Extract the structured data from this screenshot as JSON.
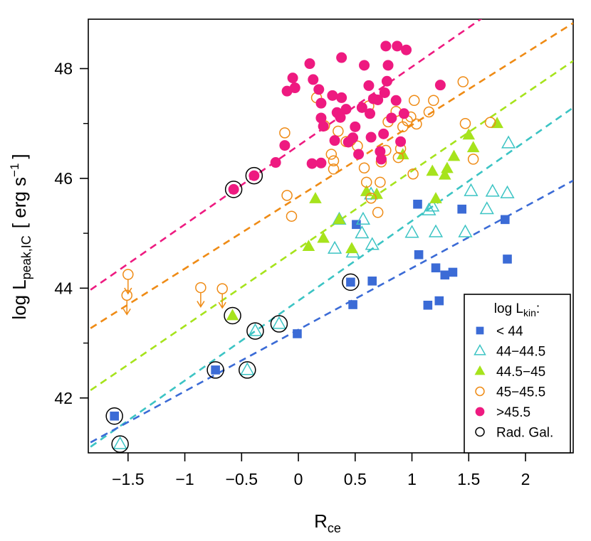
{
  "chart_data": {
    "type": "scatter",
    "xlabel": "R",
    "xlabel_sub": "ce",
    "ylabel_prefix": "log L",
    "ylabel_sub": "peak,IC",
    "ylabel_units": "[ erg s",
    "ylabel_units_sup": "−1",
    "ylabel_units_close": "]",
    "xlim": [
      -1.85,
      2.42
    ],
    "ylim": [
      41.0,
      48.9
    ],
    "x_ticks": [
      -1.5,
      -1,
      -0.5,
      0,
      0.5,
      1,
      1.5,
      2
    ],
    "x_tick_labels": [
      "−1.5",
      "−1",
      "−0.5",
      "0",
      "0.5",
      "1",
      "1.5",
      "2"
    ],
    "y_ticks": [
      42,
      44,
      46,
      48
    ],
    "y_tick_labels": [
      "42",
      "44",
      "46",
      "48"
    ],
    "y_minor_ticks": [
      43,
      45,
      47
    ],
    "grid": false,
    "legend": {
      "title": "log L",
      "title_sub": "kin",
      "title_suffix": ":",
      "position": "bottom-right",
      "entries": [
        {
          "label": "< 44",
          "marker": "square-filled",
          "color": "#3b6bd6"
        },
        {
          "label": "44−44.5",
          "marker": "triangle-open",
          "color": "#3cc4c4"
        },
        {
          "label": "44.5−45",
          "marker": "triangle-filled",
          "color": "#a6e31c"
        },
        {
          "label": "45−45.5",
          "marker": "circle-open",
          "color": "#ef8b15"
        },
        {
          "label": ">45.5",
          "marker": "circle-filled",
          "color": "#ee1a80"
        },
        {
          "label": "Rad. Gal.",
          "marker": "circle-open-large",
          "color": "#000000"
        }
      ]
    },
    "fit_lines": [
      {
        "color": "#ee1a80",
        "x": [
          -1.83,
          2.42
        ],
        "y": [
          43.97,
          50.07
        ]
      },
      {
        "color": "#ef8b15",
        "x": [
          -1.83,
          2.42
        ],
        "y": [
          43.27,
          48.83
        ]
      },
      {
        "color": "#a6e31c",
        "x": [
          -1.83,
          2.42
        ],
        "y": [
          42.14,
          48.14
        ]
      },
      {
        "color": "#3cc4c4",
        "x": [
          -1.83,
          2.42
        ],
        "y": [
          41.11,
          47.29
        ]
      },
      {
        "color": "#3b6bd6",
        "x": [
          -1.83,
          2.42
        ],
        "y": [
          41.19,
          45.96
        ]
      }
    ],
    "series": [
      {
        "name": "< 44",
        "marker": "square-filled",
        "color": "#3b6bd6",
        "points": [
          [
            -1.62,
            41.67
          ],
          [
            -0.73,
            42.51
          ],
          [
            -0.01,
            43.17
          ],
          [
            0.46,
            44.11
          ],
          [
            0.48,
            43.7
          ],
          [
            0.51,
            45.16
          ],
          [
            0.65,
            44.13
          ],
          [
            1.05,
            45.53
          ],
          [
            1.06,
            44.61
          ],
          [
            1.14,
            43.69
          ],
          [
            1.21,
            44.37
          ],
          [
            1.24,
            43.77
          ],
          [
            1.29,
            44.24
          ],
          [
            1.36,
            44.29
          ],
          [
            1.44,
            45.44
          ],
          [
            1.82,
            45.25
          ],
          [
            1.84,
            44.53
          ]
        ]
      },
      {
        "name": "44−44.5",
        "marker": "triangle-open",
        "color": "#3cc4c4",
        "points": [
          [
            -1.57,
            41.16
          ],
          [
            -0.38,
            43.22
          ],
          [
            -0.17,
            43.35
          ],
          [
            -0.45,
            42.51
          ],
          [
            0.32,
            44.72
          ],
          [
            0.36,
            45.25
          ],
          [
            0.48,
            44.65
          ],
          [
            0.56,
            45.0
          ],
          [
            0.57,
            45.25
          ],
          [
            0.64,
            45.71
          ],
          [
            0.65,
            44.79
          ],
          [
            1.0,
            45.01
          ],
          [
            1.15,
            45.42
          ],
          [
            1.18,
            45.49
          ],
          [
            1.21,
            45.02
          ],
          [
            1.47,
            45.02
          ],
          [
            1.52,
            45.77
          ],
          [
            1.66,
            45.44
          ],
          [
            1.71,
            45.76
          ],
          [
            1.84,
            45.73
          ],
          [
            1.85,
            46.64
          ]
        ]
      },
      {
        "name": "44.5−45",
        "marker": "triangle-filled",
        "color": "#a6e31c",
        "points": [
          [
            -0.58,
            43.5
          ],
          [
            0.09,
            44.76
          ],
          [
            0.15,
            45.63
          ],
          [
            0.22,
            44.91
          ],
          [
            0.36,
            45.25
          ],
          [
            0.47,
            44.72
          ],
          [
            0.6,
            45.76
          ],
          [
            0.69,
            45.71
          ],
          [
            0.92,
            46.43
          ],
          [
            1.18,
            46.13
          ],
          [
            1.21,
            45.63
          ],
          [
            1.29,
            46.06
          ],
          [
            1.31,
            46.18
          ],
          [
            1.37,
            46.4
          ],
          [
            1.5,
            46.79
          ],
          [
            1.54,
            46.56
          ],
          [
            1.75,
            47.0
          ]
        ]
      },
      {
        "name": "45−45.5",
        "marker": "circle-open",
        "color": "#ef8b15",
        "points": [
          [
            -1.5,
            44.25
          ],
          [
            -1.51,
            43.87
          ],
          [
            -0.86,
            44.01
          ],
          [
            -0.67,
            43.99
          ],
          [
            -0.12,
            46.83
          ],
          [
            -0.1,
            45.69
          ],
          [
            -0.06,
            45.31
          ],
          [
            0.16,
            47.47
          ],
          [
            0.23,
            46.96
          ],
          [
            0.29,
            46.44
          ],
          [
            0.31,
            46.32
          ],
          [
            0.31,
            46.17
          ],
          [
            0.35,
            46.86
          ],
          [
            0.42,
            46.67
          ],
          [
            0.46,
            46.69
          ],
          [
            0.52,
            46.59
          ],
          [
            0.58,
            46.19
          ],
          [
            0.6,
            45.93
          ],
          [
            0.62,
            47.32
          ],
          [
            0.64,
            45.64
          ],
          [
            0.7,
            45.38
          ],
          [
            0.72,
            45.93
          ],
          [
            0.73,
            46.3
          ],
          [
            0.77,
            46.51
          ],
          [
            0.79,
            47.03
          ],
          [
            0.86,
            47.22
          ],
          [
            0.88,
            46.38
          ],
          [
            0.9,
            46.54
          ],
          [
            0.92,
            46.94
          ],
          [
            0.96,
            47.05
          ],
          [
            0.99,
            47.12
          ],
          [
            1.01,
            46.08
          ],
          [
            1.02,
            47.42
          ],
          [
            1.04,
            46.99
          ],
          [
            1.15,
            47.21
          ],
          [
            1.19,
            47.42
          ],
          [
            1.45,
            47.76
          ],
          [
            1.47,
            47.0
          ],
          [
            1.54,
            46.35
          ],
          [
            1.69,
            47.02
          ]
        ]
      },
      {
        "name": ">45.5",
        "marker": "circle-filled",
        "color": "#ee1a80",
        "points": [
          [
            -0.57,
            45.8
          ],
          [
            -0.39,
            46.05
          ],
          [
            -0.2,
            46.29
          ],
          [
            -0.12,
            46.6
          ],
          [
            -0.1,
            47.59
          ],
          [
            -0.05,
            47.83
          ],
          [
            -0.03,
            47.65
          ],
          [
            0.1,
            48.09
          ],
          [
            0.12,
            46.27
          ],
          [
            0.13,
            47.8
          ],
          [
            0.18,
            47.62
          ],
          [
            0.2,
            47.37
          ],
          [
            0.2,
            47.1
          ],
          [
            0.2,
            46.28
          ],
          [
            0.22,
            46.95
          ],
          [
            0.3,
            47.51
          ],
          [
            0.32,
            46.69
          ],
          [
            0.34,
            47.2
          ],
          [
            0.36,
            47.16
          ],
          [
            0.37,
            47.11
          ],
          [
            0.38,
            48.2
          ],
          [
            0.38,
            47.47
          ],
          [
            0.42,
            47.26
          ],
          [
            0.44,
            46.66
          ],
          [
            0.48,
            46.74
          ],
          [
            0.5,
            46.94
          ],
          [
            0.53,
            46.44
          ],
          [
            0.56,
            47.29
          ],
          [
            0.58,
            48.06
          ],
          [
            0.62,
            47.69
          ],
          [
            0.63,
            47.18
          ],
          [
            0.64,
            46.75
          ],
          [
            0.66,
            47.45
          ],
          [
            0.7,
            47.43
          ],
          [
            0.72,
            46.49
          ],
          [
            0.73,
            46.35
          ],
          [
            0.75,
            46.81
          ],
          [
            0.76,
            47.56
          ],
          [
            0.77,
            48.41
          ],
          [
            0.78,
            47.77
          ],
          [
            0.79,
            48.06
          ],
          [
            0.82,
            47.1
          ],
          [
            0.86,
            47.42
          ],
          [
            0.87,
            48.41
          ],
          [
            0.9,
            46.67
          ],
          [
            0.93,
            47.18
          ],
          [
            0.95,
            48.34
          ],
          [
            1.25,
            47.7
          ]
        ]
      },
      {
        "name": "Rad. Gal.",
        "marker": "circle-open-large",
        "color": "#000000",
        "points": [
          [
            -1.62,
            41.67
          ],
          [
            -1.57,
            41.16
          ],
          [
            -0.73,
            42.51
          ],
          [
            -0.58,
            43.5
          ],
          [
            -0.57,
            45.8
          ],
          [
            -0.45,
            42.51
          ],
          [
            -0.39,
            46.05
          ],
          [
            -0.38,
            43.22
          ],
          [
            -0.17,
            43.35
          ],
          [
            0.46,
            44.11
          ]
        ]
      }
    ],
    "upper_limits": [
      [
        -1.5,
        44.25
      ],
      [
        -1.51,
        43.87
      ],
      [
        -0.86,
        44.01
      ],
      [
        -0.67,
        43.99
      ]
    ]
  }
}
